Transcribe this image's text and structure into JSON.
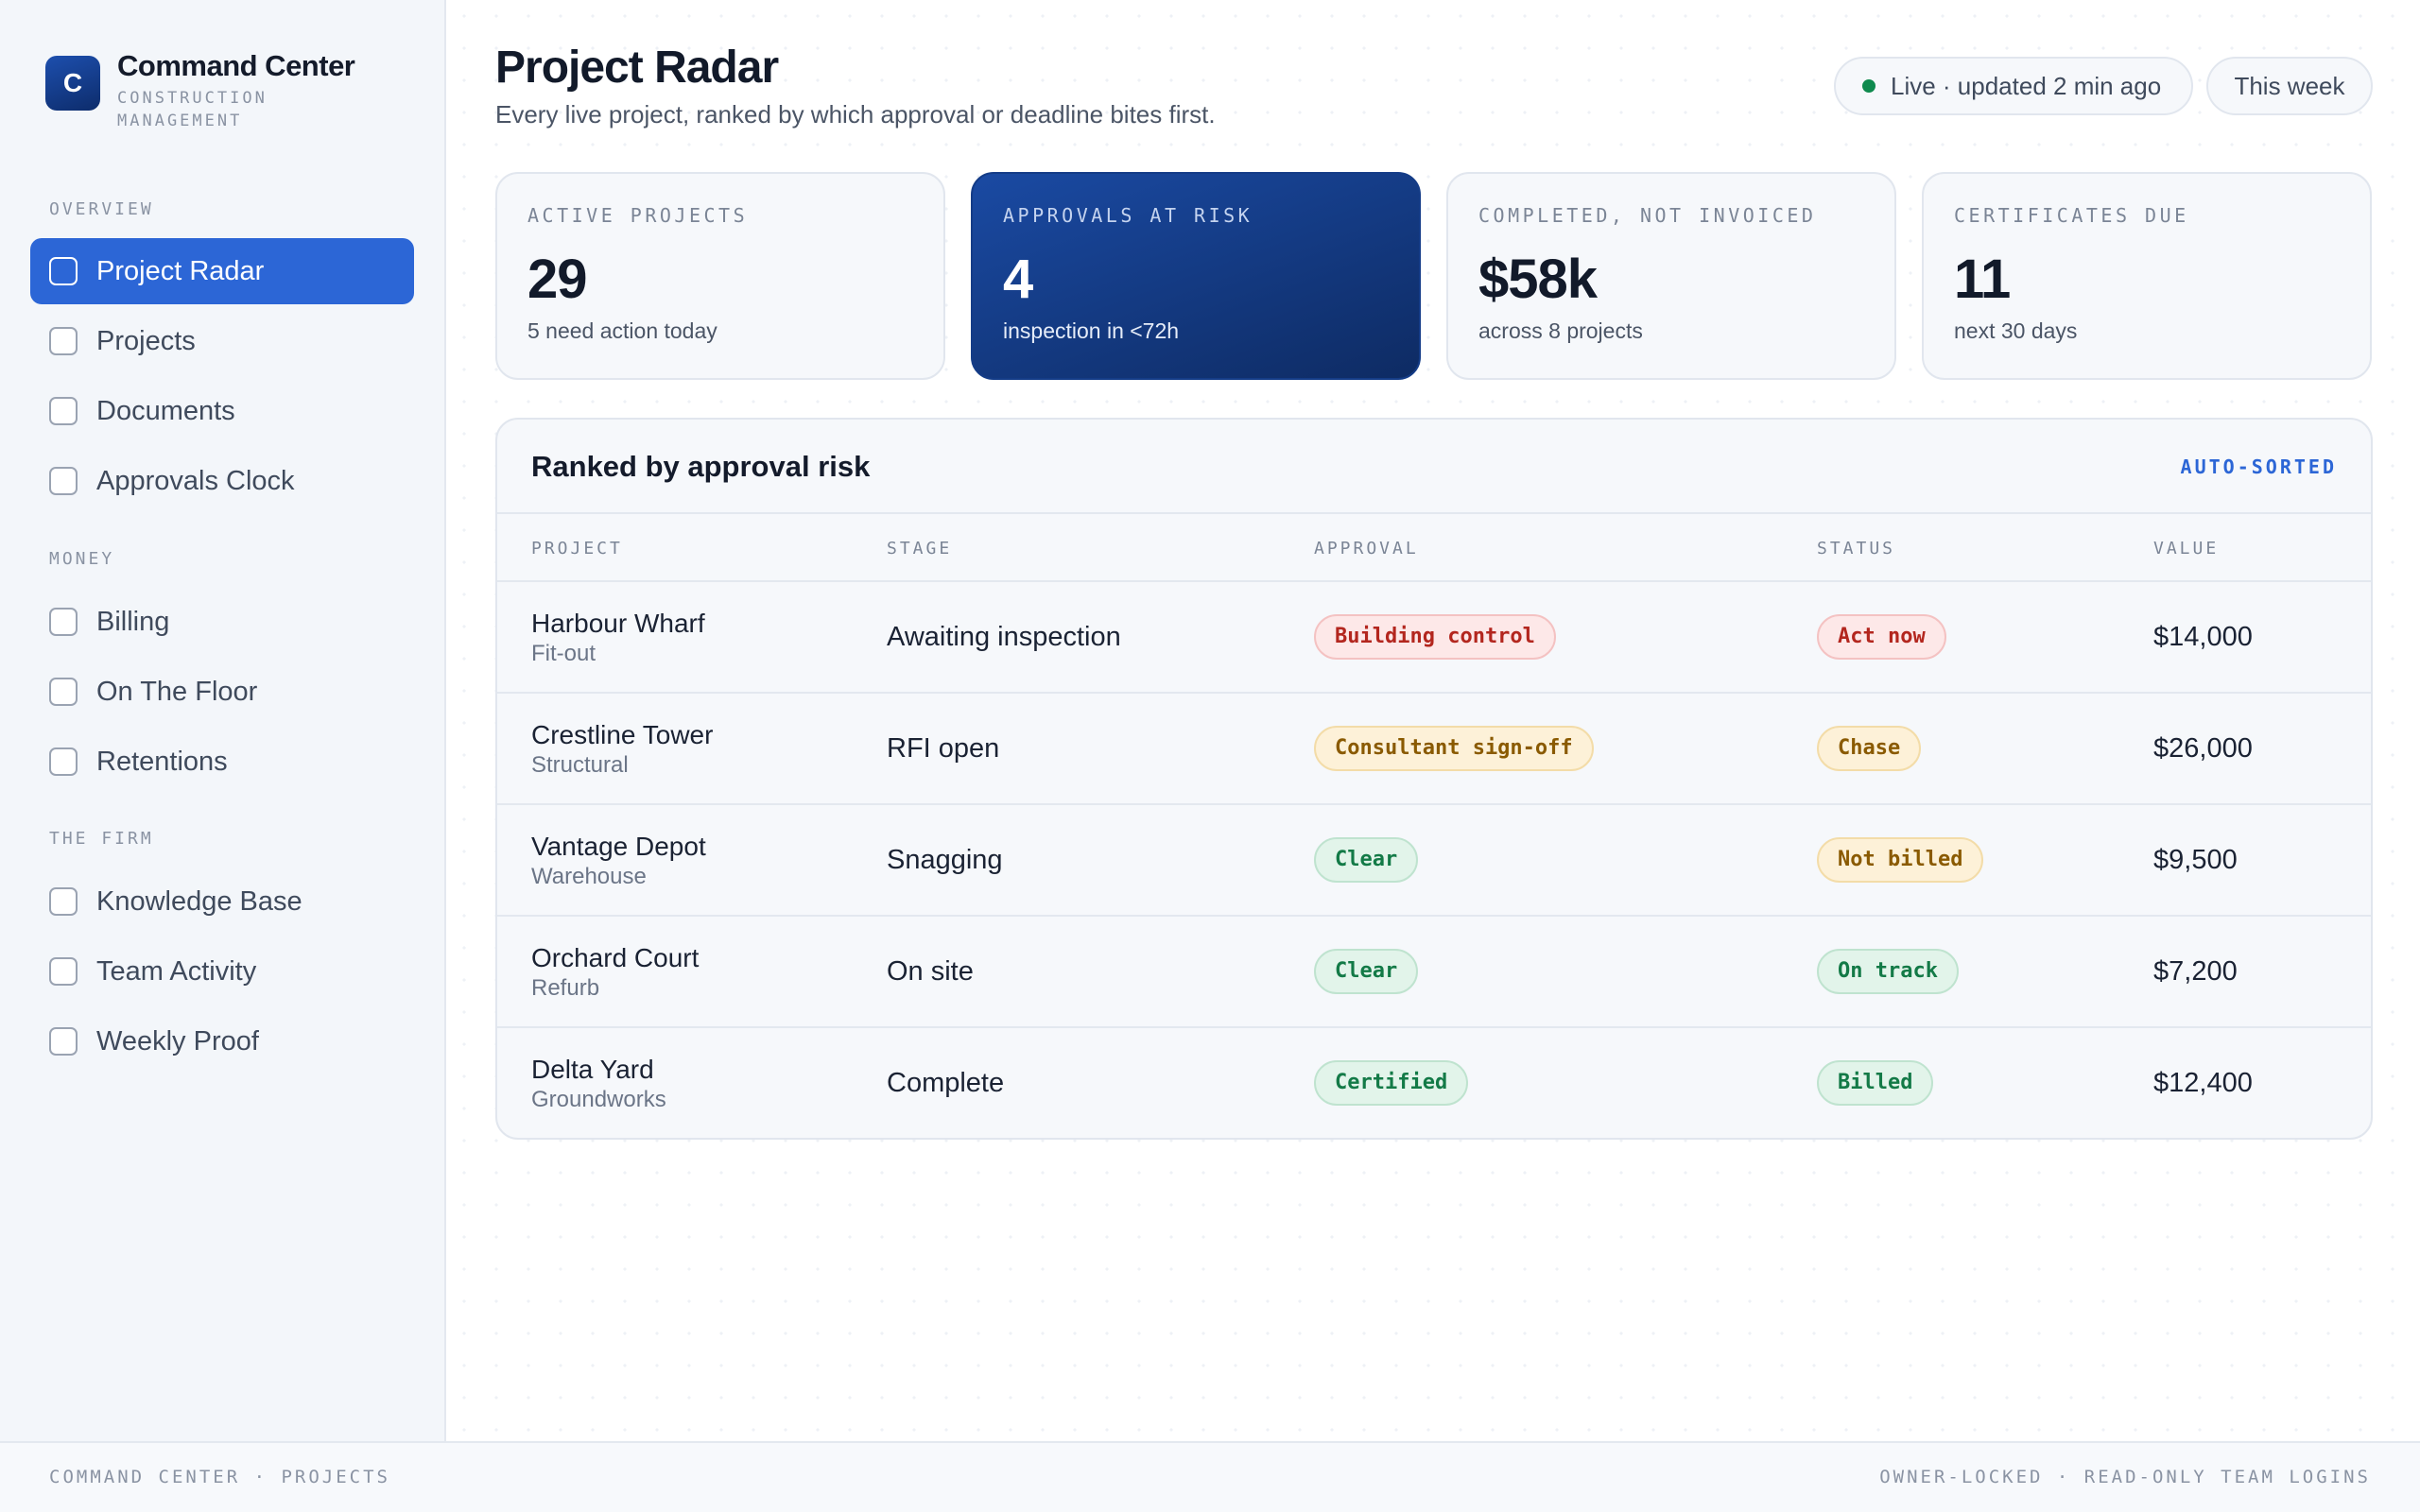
{
  "brand": {
    "logo_letter": "C",
    "title": "Command Center",
    "subtitle": "CONSTRUCTION MANAGEMENT"
  },
  "sidebar": {
    "sections": [
      {
        "title": "OVERVIEW",
        "items": [
          {
            "label": "Project Radar",
            "active": true
          },
          {
            "label": "Projects"
          },
          {
            "label": "Documents"
          },
          {
            "label": "Approvals Clock"
          }
        ]
      },
      {
        "title": "MONEY",
        "items": [
          {
            "label": "Billing"
          },
          {
            "label": "On The Floor"
          },
          {
            "label": "Retentions"
          }
        ]
      },
      {
        "title": "THE FIRM",
        "items": [
          {
            "label": "Knowledge Base"
          },
          {
            "label": "Team Activity"
          },
          {
            "label": "Weekly Proof"
          }
        ]
      }
    ]
  },
  "header": {
    "title": "Project Radar",
    "subtitle": "Every live project, ranked by which approval or deadline bites first.",
    "live_status": "Live · updated 2 min ago",
    "period": "This week"
  },
  "kpis": [
    {
      "label": "ACTIVE PROJECTS",
      "value": "29",
      "note": "5 need action today"
    },
    {
      "label": "APPROVALS AT RISK",
      "value": "4",
      "note": "inspection in <72h"
    },
    {
      "label": "COMPLETED, NOT INVOICED",
      "value": "$58k",
      "note": "across 8 projects"
    },
    {
      "label": "CERTIFICATES DUE",
      "value": "11",
      "note": "next 30 days"
    }
  ],
  "table": {
    "title": "Ranked by approval risk",
    "tag": "AUTO-SORTED",
    "columns": [
      "PROJECT",
      "STAGE",
      "APPROVAL",
      "STATUS",
      "VALUE"
    ],
    "rows": [
      {
        "name": "Harbour Wharf",
        "type": "Fit-out",
        "stage": "Awaiting inspection",
        "approval": "Building control",
        "approval_tone": "red",
        "status": "Act now",
        "status_tone": "red",
        "value": "$14,000"
      },
      {
        "name": "Crestline Tower",
        "type": "Structural",
        "stage": "RFI open",
        "approval": "Consultant sign-off",
        "approval_tone": "amber",
        "status": "Chase",
        "status_tone": "amber",
        "value": "$26,000"
      },
      {
        "name": "Vantage Depot",
        "type": "Warehouse",
        "stage": "Snagging",
        "approval": "Clear",
        "approval_tone": "green",
        "status": "Not billed",
        "status_tone": "amber",
        "value": "$9,500"
      },
      {
        "name": "Orchard Court",
        "type": "Refurb",
        "stage": "On site",
        "approval": "Clear",
        "approval_tone": "green",
        "status": "On track",
        "status_tone": "green",
        "value": "$7,200"
      },
      {
        "name": "Delta Yard",
        "type": "Groundworks",
        "stage": "Complete",
        "approval": "Certified",
        "approval_tone": "green",
        "status": "Billed",
        "status_tone": "green",
        "value": "$12,400"
      }
    ]
  },
  "footer": {
    "left": "COMMAND CENTER · PROJECTS",
    "right": "OWNER-LOCKED · READ-ONLY TEAM LOGINS"
  },
  "colors": {
    "accent": "#2c66d6",
    "feature_card": "#0e2b63",
    "danger": "#b3261e",
    "warning": "#8a5a00",
    "success": "#137a47"
  }
}
